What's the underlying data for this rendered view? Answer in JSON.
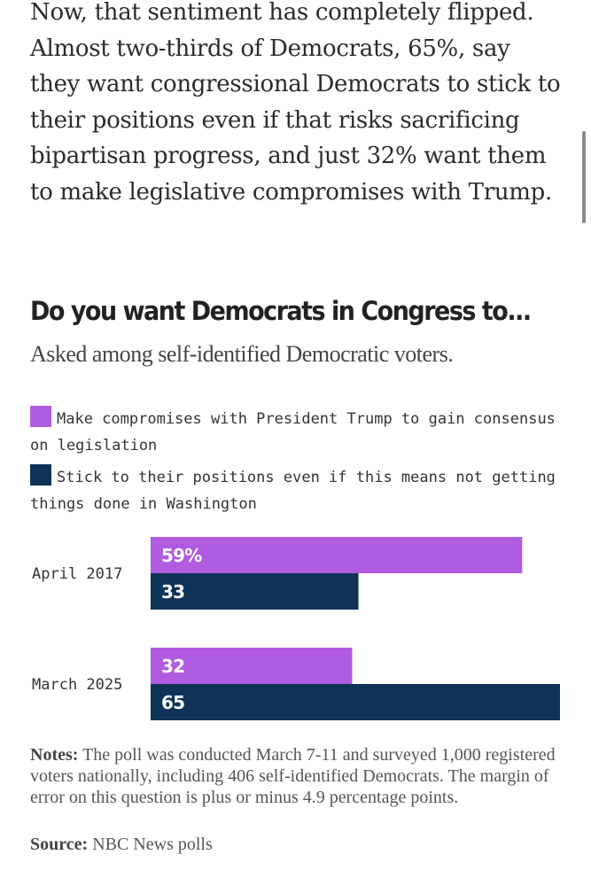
{
  "article": {
    "paragraph": "Now, that sentiment has completely flipped. Almost two-thirds of Democrats, 65%, say they want congressional Democrats to stick to their positions even if that risks sacrificing bipartisan progress, and just 32% want them to make legislative compromises with Trump."
  },
  "colors": {
    "compromise": "#b05ce0",
    "stick": "#0f3358"
  },
  "legend": {
    "compromise": "Make compromises with President Trump to gain consensus on legislation",
    "stick": "Stick to their positions even if this means not getting things done in Washington"
  },
  "chart_data": {
    "type": "bar",
    "orientation": "horizontal",
    "title": "Do you want Democrats in Congress to...",
    "subtitle": "Asked among self-identified Democratic voters.",
    "categories": [
      "April 2017",
      "March 2025"
    ],
    "series": [
      {
        "name": "Make compromises with President Trump to gain consensus on legislation",
        "values": [
          59,
          32
        ],
        "labels": [
          "59%",
          "32"
        ]
      },
      {
        "name": "Stick to their positions even if this means not getting things done in Washington",
        "values": [
          33,
          65
        ],
        "labels": [
          "33",
          "65"
        ]
      }
    ],
    "xlim": [
      0,
      65
    ],
    "grid": false,
    "legend_position": "top"
  },
  "notes": {
    "label": "Notes:",
    "text": "The poll was conducted March 7-11 and surveyed 1,000 registered voters nationally, including 406 self-identified Democrats. The margin of error on this question is plus or minus 4.9 percentage points."
  },
  "source": {
    "label": "Source:",
    "text": "NBC News polls"
  }
}
